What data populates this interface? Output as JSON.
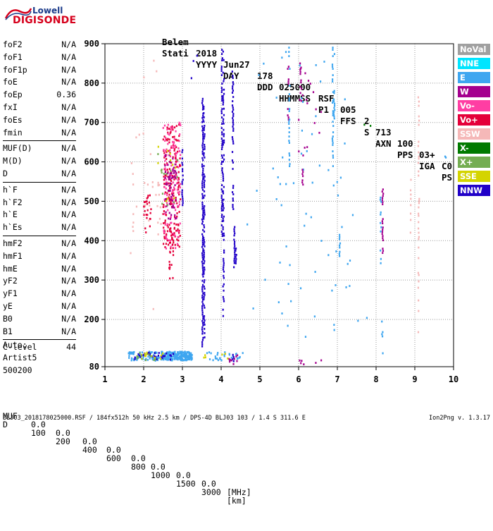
{
  "logo": {
    "top": "Lowell",
    "bottom": "DIGISONDE"
  },
  "header": {
    "line1": [
      "Stati",
      "YYYY",
      "DAY",
      "DDD",
      "HHMMSS",
      "P1",
      "FFS",
      "S",
      "AXN",
      "PPS",
      "IGA",
      "PS"
    ],
    "line2": [
      "Belem",
      "2018",
      "Jun27",
      "178",
      "025000",
      "RSF",
      "005",
      "2",
      "713",
      "100",
      "03+",
      "C0"
    ]
  },
  "parameters": [
    {
      "name": "foF2",
      "value": "N/A"
    },
    {
      "name": "foF1",
      "value": "N/A"
    },
    {
      "name": "foF1p",
      "value": "N/A"
    },
    {
      "name": "foE",
      "value": "N/A"
    },
    {
      "name": "foEp",
      "value": "0.36"
    },
    {
      "name": "fxI",
      "value": "N/A"
    },
    {
      "name": "foEs",
      "value": "N/A"
    },
    {
      "name": "fmin",
      "value": "N/A"
    },
    {
      "sep": true
    },
    {
      "name": "MUF(D)",
      "value": "N/A"
    },
    {
      "name": "M(D)",
      "value": "N/A"
    },
    {
      "name": "D",
      "value": "N/A"
    },
    {
      "sep": true
    },
    {
      "name": "h`F",
      "value": "N/A"
    },
    {
      "name": "h`F2",
      "value": "N/A"
    },
    {
      "name": "h`E",
      "value": "N/A"
    },
    {
      "name": "h`Es",
      "value": "N/A"
    },
    {
      "sep": true
    },
    {
      "name": "hmF2",
      "value": "N/A"
    },
    {
      "name": "hmF1",
      "value": "N/A"
    },
    {
      "name": "hmE",
      "value": "N/A"
    },
    {
      "name": "yF2",
      "value": "N/A"
    },
    {
      "name": "yF1",
      "value": "N/A"
    },
    {
      "name": "yE",
      "value": "N/A"
    },
    {
      "name": "B0",
      "value": "N/A"
    },
    {
      "name": "B1",
      "value": "N/A"
    },
    {
      "sep": true
    },
    {
      "name": "C-level",
      "value": "44"
    }
  ],
  "auto": {
    "label": "Auto:",
    "program": "Artist5",
    "version": "500200"
  },
  "legend": [
    {
      "label": "NoVal",
      "color": "#a0a0a0"
    },
    {
      "label": "NNE",
      "color": "#00e5ff"
    },
    {
      "label": "E",
      "color": "#3ea6f0"
    },
    {
      "label": "W",
      "color": "#a4008e"
    },
    {
      "label": "Vo-",
      "color": "#ff3ea3"
    },
    {
      "label": "Vo+",
      "color": "#e4003a"
    },
    {
      "label": "SSW",
      "color": "#f5b8b8"
    },
    {
      "label": "X-",
      "color": "#007a00"
    },
    {
      "label": "X+",
      "color": "#74ad52"
    },
    {
      "label": "SSE",
      "color": "#d4d400"
    },
    {
      "label": "NNW",
      "color": "#2000c8"
    }
  ],
  "mufTable": {
    "dLabel": "D",
    "dValues": [
      "100",
      "200",
      "400",
      "600",
      "800",
      "1000",
      "1500",
      "3000"
    ],
    "dUnit": "[km]",
    "mufLabel": "MUF",
    "mufValues": [
      "0.0",
      "0.0",
      "0.0",
      "0.0",
      "0.0",
      "0.0",
      "0.0",
      "0.0"
    ],
    "mufUnit": "[MHz]"
  },
  "footer": "BLJ03_2018178025000.RSF / 184fx512h 50 kHz 2.5 km / DPS-4D BLJ03 103 / 1.4 S 311.6 E",
  "version": "Ion2Png v. 1.3.17",
  "chart_data": {
    "type": "scatter",
    "xlim": [
      1,
      10
    ],
    "ylim": [
      80,
      900
    ],
    "xticks": [
      1,
      2,
      3,
      4,
      5,
      6,
      7,
      8,
      9,
      10
    ],
    "yticks": [
      80,
      200,
      300,
      400,
      500,
      600,
      700,
      800,
      900
    ],
    "xunit": "MHz",
    "yunit": "km",
    "gridlines": "dotted",
    "legendPlacement": "right",
    "strips": [
      {
        "x": 3.52,
        "y0": 130,
        "y1": 760,
        "code": "NNW",
        "density": 0.85
      },
      {
        "x": 3.56,
        "y0": 150,
        "y1": 740,
        "code": "NNW",
        "density": 0.6
      },
      {
        "x": 4.02,
        "y0": 410,
        "y1": 890,
        "code": "NNW",
        "density": 0.7
      },
      {
        "x": 4.06,
        "y0": 200,
        "y1": 880,
        "code": "NNW",
        "density": 0.5
      },
      {
        "x": 4.3,
        "y0": 480,
        "y1": 840,
        "code": "NNW",
        "density": 0.65
      },
      {
        "x": 4.34,
        "y0": 330,
        "y1": 440,
        "code": "NNW",
        "density": 0.8
      },
      {
        "x": 4.38,
        "y0": 340,
        "y1": 380,
        "code": "NNW",
        "density": 0.9
      },
      {
        "x": 4.31,
        "y0": 85,
        "y1": 110,
        "code": "NNW",
        "density": 0.9
      },
      {
        "x": 3.0,
        "y0": 490,
        "y1": 630,
        "code": "NNW",
        "density": 0.6
      },
      {
        "x": 6.05,
        "y0": 760,
        "y1": 850,
        "code": "W",
        "density": 0.5
      },
      {
        "x": 6.1,
        "y0": 540,
        "y1": 580,
        "code": "W",
        "density": 0.8
      },
      {
        "x": 5.73,
        "y0": 620,
        "y1": 890,
        "code": "W",
        "density": 0.25
      },
      {
        "x": 6.88,
        "y0": 580,
        "y1": 890,
        "code": "E",
        "density": 0.55
      },
      {
        "x": 6.92,
        "y0": 700,
        "y1": 780,
        "code": "E",
        "density": 0.8
      },
      {
        "x": 5.76,
        "y0": 580,
        "y1": 890,
        "code": "E",
        "density": 0.3
      },
      {
        "x": 8.17,
        "y0": 340,
        "y1": 530,
        "code": "W",
        "density": 0.55
      },
      {
        "x": 8.12,
        "y0": 330,
        "y1": 520,
        "code": "E",
        "density": 0.3
      },
      {
        "x": 8.16,
        "y0": 110,
        "y1": 200,
        "code": "E",
        "density": 0.3
      },
      {
        "x": 9.1,
        "y0": 160,
        "y1": 780,
        "code": "SSW",
        "density": 0.25
      },
      {
        "x": 8.9,
        "y0": 420,
        "y1": 560,
        "code": "SSW",
        "density": 0.3
      },
      {
        "x": 7.06,
        "y0": 360,
        "y1": 420,
        "code": "E",
        "density": 0.5
      },
      {
        "x": 1.72,
        "y0": 420,
        "y1": 650,
        "code": "SSW",
        "density": 0.12
      }
    ],
    "blobs": [
      {
        "x0": 2.5,
        "x1": 2.95,
        "y0": 380,
        "y1": 700,
        "code": "Vo+",
        "n": 190
      },
      {
        "x0": 2.5,
        "x1": 2.95,
        "y0": 380,
        "y1": 700,
        "code": "Vo-",
        "n": 120
      },
      {
        "x0": 2.55,
        "x1": 2.85,
        "y0": 450,
        "y1": 620,
        "code": "W",
        "n": 60
      },
      {
        "x0": 2.65,
        "x1": 2.8,
        "y0": 300,
        "y1": 450,
        "code": "Vo+",
        "n": 25
      },
      {
        "x0": 2.0,
        "x1": 2.2,
        "y0": 420,
        "y1": 520,
        "code": "Vo+",
        "n": 25
      },
      {
        "x0": 2.0,
        "x1": 2.45,
        "y0": 440,
        "y1": 560,
        "code": "SSW",
        "n": 18
      },
      {
        "x0": 2.3,
        "x1": 2.9,
        "y0": 480,
        "y1": 620,
        "code": "X+",
        "n": 14
      },
      {
        "x0": 2.3,
        "x1": 2.9,
        "y0": 500,
        "y1": 640,
        "code": "SSE",
        "n": 10
      },
      {
        "x0": 2.45,
        "x1": 3.25,
        "y0": 96,
        "y1": 118,
        "code": "E",
        "n": 220
      },
      {
        "x0": 1.6,
        "x1": 2.4,
        "y0": 94,
        "y1": 118,
        "code": "E",
        "n": 70
      },
      {
        "x0": 1.7,
        "x1": 2.8,
        "y0": 98,
        "y1": 116,
        "code": "NNW",
        "n": 30
      },
      {
        "x0": 1.9,
        "x1": 2.6,
        "y0": 96,
        "y1": 116,
        "code": "SSE",
        "n": 12
      },
      {
        "x0": 1.8,
        "x1": 2.6,
        "y0": 96,
        "y1": 116,
        "code": "X+",
        "n": 10
      },
      {
        "x0": 3.5,
        "x1": 4.6,
        "y0": 96,
        "y1": 118,
        "code": "E",
        "n": 30
      },
      {
        "x0": 3.55,
        "x1": 4.4,
        "y0": 100,
        "y1": 118,
        "code": "SSE",
        "n": 6
      },
      {
        "x0": 4.2,
        "x1": 4.5,
        "y0": 84,
        "y1": 110,
        "code": "W",
        "n": 10
      },
      {
        "x0": 6.0,
        "x1": 6.6,
        "y0": 84,
        "y1": 112,
        "code": "W",
        "n": 6
      },
      {
        "x0": 5.3,
        "x1": 7.4,
        "y0": 140,
        "y1": 880,
        "code": "E",
        "n": 50
      },
      {
        "x0": 6.0,
        "x1": 6.6,
        "y0": 600,
        "y1": 860,
        "code": "W",
        "n": 20
      },
      {
        "x0": 1.6,
        "x1": 2.4,
        "y0": 200,
        "y1": 870,
        "code": "SSW",
        "n": 12
      },
      {
        "x0": 9.6,
        "x1": 9.9,
        "y0": 600,
        "y1": 660,
        "code": "E",
        "n": 2
      },
      {
        "x0": 4.6,
        "x1": 7.8,
        "y0": 170,
        "y1": 860,
        "code": "E",
        "n": 20
      },
      {
        "x0": 7.6,
        "x1": 7.9,
        "y0": 686,
        "y1": 698,
        "code": "X-",
        "n": 2
      },
      {
        "x0": 3.2,
        "x1": 3.4,
        "y0": 810,
        "y1": 880,
        "code": "NNW",
        "n": 3
      }
    ]
  }
}
